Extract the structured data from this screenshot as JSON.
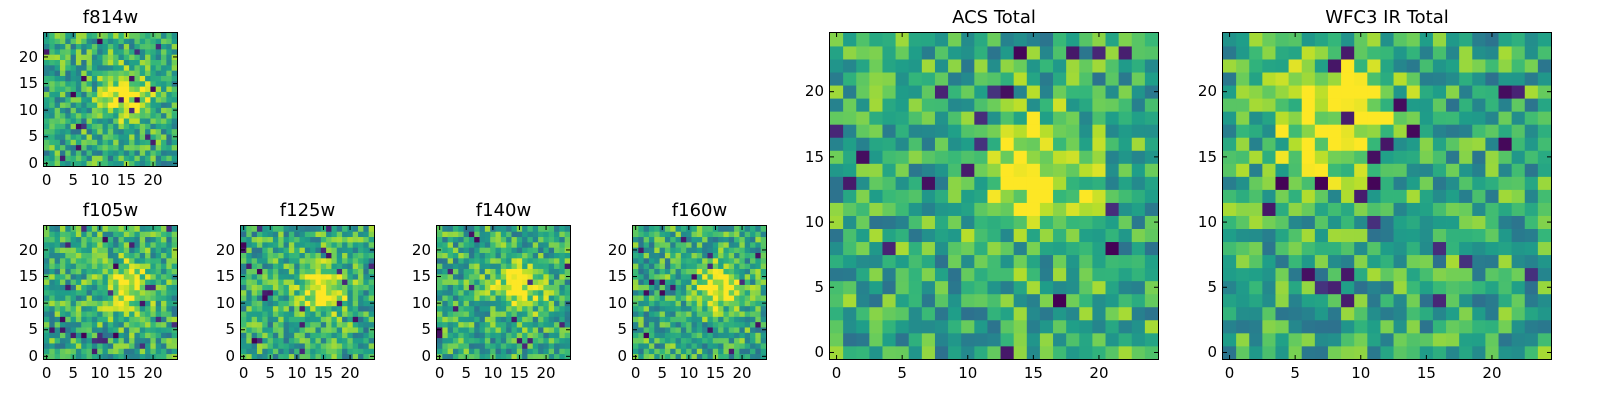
{
  "chart_data": [
    {
      "type": "heatmap",
      "title": "f814w",
      "x_ticks": [
        0,
        5,
        10,
        15,
        20
      ],
      "y_ticks": [
        0,
        5,
        10,
        15,
        20
      ],
      "xlim": [
        0,
        25
      ],
      "ylim": [
        0,
        25
      ],
      "grid_size": 25,
      "colormap": "viridis",
      "source_peak": [
        15,
        13
      ]
    },
    {
      "type": "heatmap",
      "title": "f105w",
      "x_ticks": [
        0,
        5,
        10,
        15,
        20
      ],
      "y_ticks": [
        0,
        5,
        10,
        15,
        20
      ],
      "xlim": [
        0,
        25
      ],
      "ylim": [
        0,
        25
      ],
      "grid_size": 25,
      "colormap": "viridis",
      "source_peak": [
        15,
        13
      ]
    },
    {
      "type": "heatmap",
      "title": "f125w",
      "x_ticks": [
        0,
        5,
        10,
        15,
        20
      ],
      "y_ticks": [
        0,
        5,
        10,
        15,
        20
      ],
      "xlim": [
        0,
        25
      ],
      "ylim": [
        0,
        25
      ],
      "grid_size": 25,
      "colormap": "viridis",
      "source_peak": [
        15,
        13
      ]
    },
    {
      "type": "heatmap",
      "title": "f140w",
      "x_ticks": [
        0,
        5,
        10,
        15,
        20
      ],
      "y_ticks": [
        0,
        5,
        10,
        15,
        20
      ],
      "xlim": [
        0,
        25
      ],
      "ylim": [
        0,
        25
      ],
      "grid_size": 25,
      "colormap": "viridis",
      "source_peak": [
        15,
        13
      ]
    },
    {
      "type": "heatmap",
      "title": "f160w",
      "x_ticks": [
        0,
        5,
        10,
        15,
        20
      ],
      "y_ticks": [
        0,
        5,
        10,
        15,
        20
      ],
      "xlim": [
        0,
        25
      ],
      "ylim": [
        0,
        25
      ],
      "grid_size": 25,
      "colormap": "viridis",
      "source_peak": [
        15,
        13
      ]
    },
    {
      "type": "heatmap",
      "title": "ACS Total",
      "x_ticks": [
        0,
        5,
        10,
        15,
        20
      ],
      "y_ticks": [
        0,
        5,
        10,
        15,
        20
      ],
      "xlim": [
        0,
        25
      ],
      "ylim": [
        0,
        25
      ],
      "grid_size": 25,
      "colormap": "viridis",
      "source_peak": [
        15,
        14
      ]
    },
    {
      "type": "heatmap",
      "title": "WFC3 IR Total",
      "x_ticks": [
        0,
        5,
        10,
        15,
        20
      ],
      "y_ticks": [
        0,
        5,
        10,
        15,
        20
      ],
      "xlim": [
        0,
        25
      ],
      "ylim": [
        0,
        25
      ],
      "grid_size": 25,
      "colormap": "viridis",
      "source_peak": [
        8,
        18
      ]
    }
  ]
}
